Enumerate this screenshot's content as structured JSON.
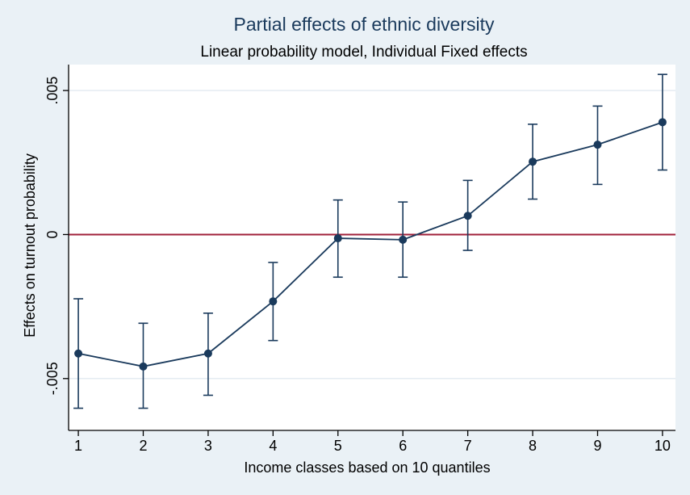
{
  "chart_data": {
    "type": "line",
    "title": "Partial effects of ethnic diversity",
    "subtitle": "Linear probability model, Individual Fixed effects",
    "xlabel": "Income classes based on 10 quantiles",
    "ylabel": "Effects on turnout probability",
    "x": [
      1,
      2,
      3,
      4,
      5,
      6,
      7,
      8,
      9,
      10
    ],
    "x_ticks": [
      1,
      2,
      3,
      4,
      5,
      6,
      7,
      8,
      9,
      10
    ],
    "xlim": [
      0.85,
      10.2
    ],
    "ylim": [
      -0.0068,
      0.0059
    ],
    "y_ticks": [
      -0.005,
      0,
      0.005
    ],
    "y_tick_labels": [
      "-.005",
      "0",
      ".005"
    ],
    "grid": true,
    "series": [
      {
        "estimate": [
          -0.00413,
          -0.00458,
          -0.00413,
          -0.00232,
          -0.00013,
          -0.00018,
          0.00065,
          0.00253,
          0.00312,
          0.0039
        ],
        "ci_lower": [
          -0.00603,
          -0.00603,
          -0.00558,
          -0.00368,
          -0.00148,
          -0.00148,
          -0.00055,
          0.00123,
          0.00174,
          0.00224
        ],
        "ci_upper": [
          -0.00223,
          -0.00308,
          -0.00273,
          -0.00097,
          0.0012,
          0.00113,
          0.00188,
          0.00383,
          0.00446,
          0.00556
        ],
        "color": "#1a3a5c",
        "marker": "circle"
      }
    ],
    "reference_line": {
      "y": 0,
      "color": "#a0203a"
    },
    "colors": {
      "background": "#eaf1f6",
      "plot_background": "#ffffff",
      "grid": "#e4ecf2",
      "axis": "#000000",
      "text": "#000000",
      "title": "#1a3a5c"
    }
  }
}
